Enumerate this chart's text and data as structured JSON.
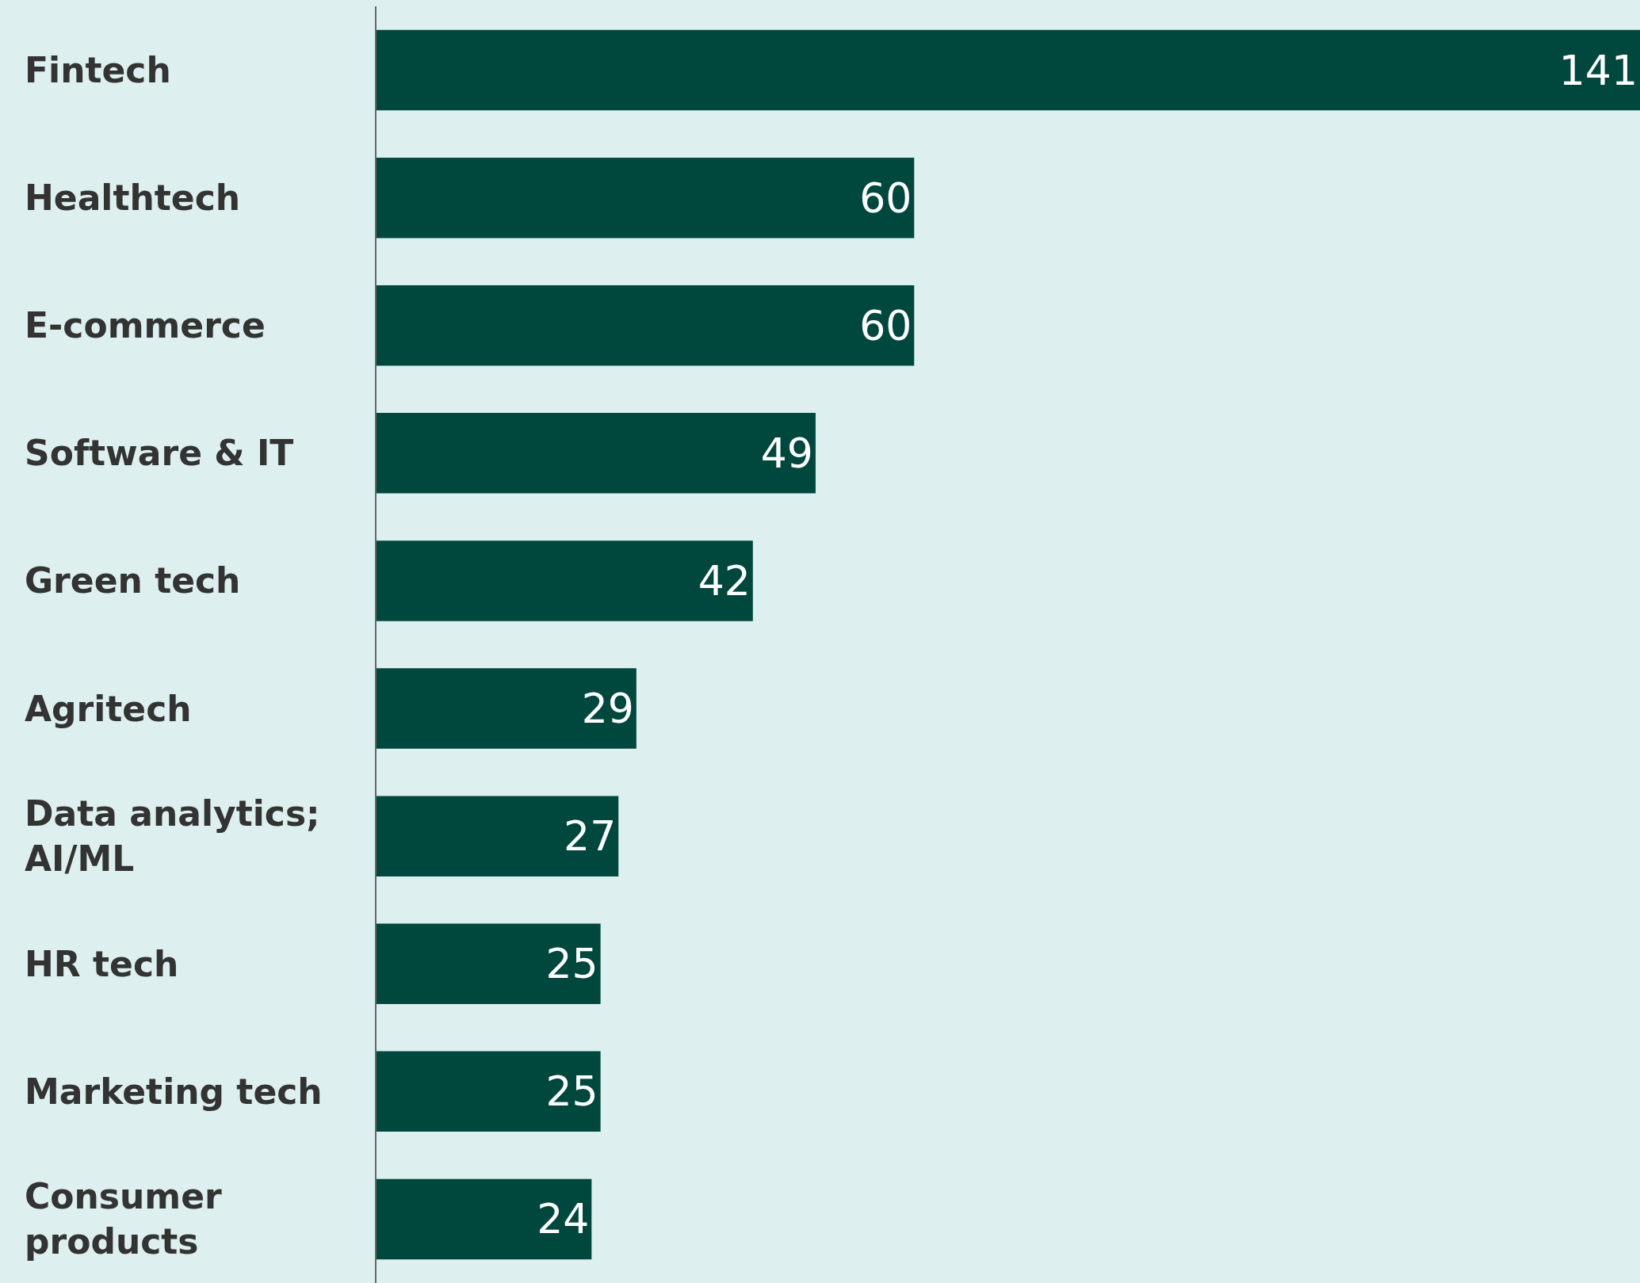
{
  "chart_data": {
    "type": "bar",
    "orientation": "horizontal",
    "categories": [
      "Fintech",
      "Healthtech",
      "E-commerce",
      "Software & IT",
      "Green tech",
      "Agritech",
      "Data analytics; AI/ML",
      "HR tech",
      "Marketing tech",
      "Consumer products"
    ],
    "values": [
      141,
      60,
      60,
      49,
      42,
      29,
      27,
      25,
      25,
      24
    ],
    "color": "#00483e",
    "data_labels": true
  }
}
